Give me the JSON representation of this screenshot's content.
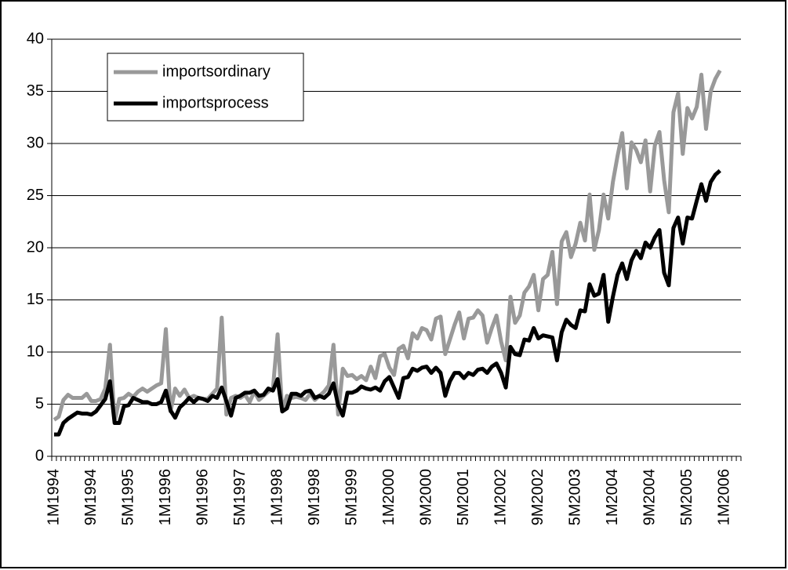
{
  "chart_data": {
    "type": "line",
    "categories": [
      "1M1994",
      null,
      null,
      null,
      null,
      null,
      null,
      null,
      "9M1994",
      null,
      null,
      null,
      null,
      null,
      null,
      null,
      "5M1995",
      null,
      null,
      null,
      null,
      null,
      null,
      null,
      "1M1996",
      null,
      null,
      null,
      null,
      null,
      null,
      null,
      "9M1996",
      null,
      null,
      null,
      null,
      null,
      null,
      null,
      "5M1997",
      null,
      null,
      null,
      null,
      null,
      null,
      null,
      "1M1998",
      null,
      null,
      null,
      null,
      null,
      null,
      null,
      "9M1998",
      null,
      null,
      null,
      null,
      null,
      null,
      null,
      "5M1999",
      null,
      null,
      null,
      null,
      null,
      null,
      null,
      "1M2000",
      null,
      null,
      null,
      null,
      null,
      null,
      null,
      "9M2000",
      null,
      null,
      null,
      null,
      null,
      null,
      null,
      "5M2001",
      null,
      null,
      null,
      null,
      null,
      null,
      null,
      "1M2002",
      null,
      null,
      null,
      null,
      null,
      null,
      null,
      "9M2002",
      null,
      null,
      null,
      null,
      null,
      null,
      null,
      "5M2003",
      null,
      null,
      null,
      null,
      null,
      null,
      null,
      "1M2004",
      null,
      null,
      null,
      null,
      null,
      null,
      null,
      "9M2004",
      null,
      null,
      null,
      null,
      null,
      null,
      null,
      "5M2005",
      null,
      null,
      null,
      null,
      null,
      null,
      null,
      "1M2006",
      null,
      null,
      null
    ],
    "series": [
      {
        "name": "importsordinary",
        "color": "#999999",
        "values": [
          3.5,
          3.8,
          5.4,
          5.9,
          5.6,
          5.6,
          5.6,
          6.0,
          5.3,
          5.3,
          5.5,
          6.5,
          10.7,
          3.3,
          5.5,
          5.6,
          6.0,
          5.7,
          6.2,
          6.5,
          6.2,
          6.5,
          6.8,
          7.0,
          12.2,
          4.3,
          6.5,
          5.8,
          6.4,
          5.6,
          5.8,
          5.6,
          5.5,
          5.5,
          6.0,
          6.5,
          13.3,
          4.0,
          5.6,
          5.8,
          5.6,
          5.9,
          5.2,
          6.2,
          5.4,
          5.8,
          6.2,
          6.5,
          11.7,
          4.3,
          5.8,
          5.6,
          5.7,
          5.6,
          5.4,
          6.0,
          5.4,
          5.8,
          6.2,
          6.8,
          10.7,
          4.0,
          8.4,
          7.7,
          7.8,
          7.4,
          7.7,
          7.3,
          8.6,
          7.5,
          9.6,
          9.8,
          8.5,
          7.8,
          10.3,
          10.6,
          9.4,
          11.8,
          11.3,
          12.3,
          12.1,
          11.2,
          13.2,
          13.4,
          9.8,
          11.2,
          12.6,
          13.8,
          11.3,
          13.2,
          13.3,
          14.0,
          13.5,
          10.9,
          12.3,
          13.5,
          11.0,
          9.2,
          15.3,
          12.8,
          13.5,
          15.7,
          16.3,
          17.4,
          14.0,
          17.0,
          17.4,
          19.6,
          14.6,
          20.6,
          21.5,
          19.1,
          20.4,
          22.4,
          20.7,
          25.1,
          19.8,
          21.7,
          25.1,
          22.8,
          26.3,
          28.8,
          31.0,
          25.7,
          30.1,
          29.4,
          28.2,
          30.3,
          25.4,
          29.8,
          31.1,
          26.5,
          23.4,
          33.0,
          34.8,
          29.0,
          33.4,
          32.4,
          33.5,
          36.6,
          31.4,
          35.0,
          36.2,
          37.0,
          null,
          null,
          null,
          null
        ]
      },
      {
        "name": "importsprocess",
        "color": "#000000",
        "values": [
          2.1,
          2.1,
          3.2,
          3.6,
          3.9,
          4.2,
          4.1,
          4.1,
          4.0,
          4.3,
          4.9,
          5.5,
          7.2,
          3.2,
          3.2,
          4.8,
          4.9,
          5.6,
          5.4,
          5.2,
          5.2,
          5.0,
          5.0,
          5.2,
          6.3,
          4.4,
          3.7,
          4.7,
          5.1,
          5.6,
          5.2,
          5.6,
          5.5,
          5.3,
          5.8,
          5.6,
          6.6,
          5.3,
          3.9,
          5.6,
          5.8,
          6.1,
          6.1,
          6.3,
          5.8,
          5.9,
          6.5,
          6.3,
          7.4,
          4.3,
          4.6,
          6.0,
          6.0,
          5.8,
          6.2,
          6.3,
          5.6,
          5.8,
          5.6,
          6.0,
          7.0,
          4.9,
          3.9,
          6.1,
          6.1,
          6.3,
          6.7,
          6.5,
          6.4,
          6.6,
          6.3,
          7.2,
          7.6,
          6.6,
          5.6,
          7.5,
          7.6,
          8.4,
          8.2,
          8.5,
          8.6,
          8.0,
          8.5,
          8.0,
          5.8,
          7.2,
          8.0,
          8.0,
          7.5,
          8.0,
          7.8,
          8.3,
          8.4,
          8.0,
          8.6,
          8.9,
          8.0,
          6.6,
          10.5,
          9.8,
          9.7,
          11.2,
          11.1,
          12.3,
          11.3,
          11.6,
          11.5,
          11.4,
          9.2,
          11.9,
          13.1,
          12.6,
          12.3,
          14.0,
          13.9,
          16.5,
          15.4,
          15.6,
          17.4,
          12.9,
          15.3,
          17.4,
          18.5,
          17.0,
          18.8,
          19.7,
          19.0,
          20.5,
          20.0,
          21.0,
          21.7,
          17.6,
          16.4,
          21.9,
          22.9,
          20.4,
          22.9,
          22.8,
          24.5,
          26.1,
          24.5,
          26.3,
          27.0,
          27.4,
          null,
          null,
          null,
          null
        ]
      }
    ],
    "ylim": [
      0,
      40
    ],
    "yticks": [
      0,
      5,
      10,
      15,
      20,
      25,
      30,
      35,
      40
    ],
    "grid": true,
    "legend": "top-left"
  }
}
